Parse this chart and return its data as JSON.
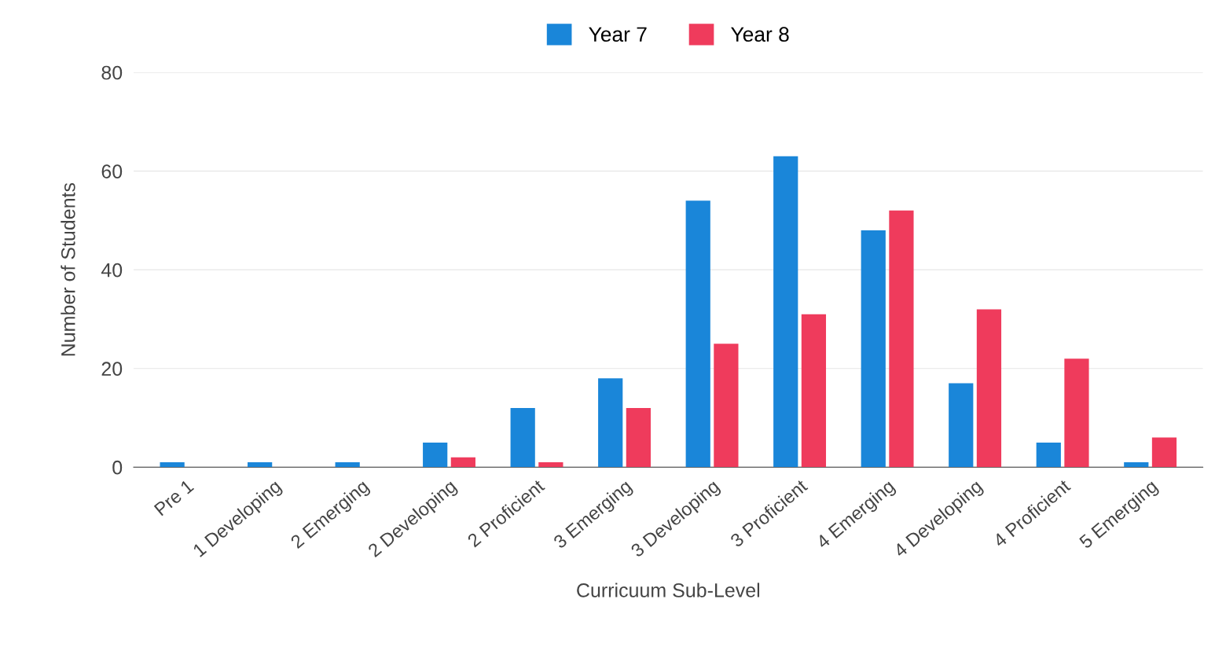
{
  "chart_data": {
    "type": "bar",
    "xlabel": "Curricuum Sub-Level",
    "ylabel": "Number of Students",
    "categories": [
      "Pre 1",
      "1 Developing",
      "2 Emerging",
      "2 Developing",
      "2 Proficient",
      "3 Emerging",
      "3 Developing",
      "3 Proficient",
      "4 Emerging",
      "4 Developing",
      "4 Proficient",
      "5 Emerging"
    ],
    "series": [
      {
        "name": "Year 7",
        "color": "#1a86d9",
        "values": [
          1,
          1,
          1,
          5,
          12,
          18,
          54,
          63,
          48,
          17,
          5,
          1
        ]
      },
      {
        "name": "Year 8",
        "color": "#ef3b5c",
        "values": [
          0,
          0,
          0,
          2,
          1,
          12,
          25,
          31,
          52,
          32,
          22,
          6
        ]
      }
    ],
    "ylim": [
      0,
      80
    ],
    "yticks": [
      0,
      20,
      40,
      60,
      80
    ],
    "grid": "y",
    "legend": "top"
  }
}
